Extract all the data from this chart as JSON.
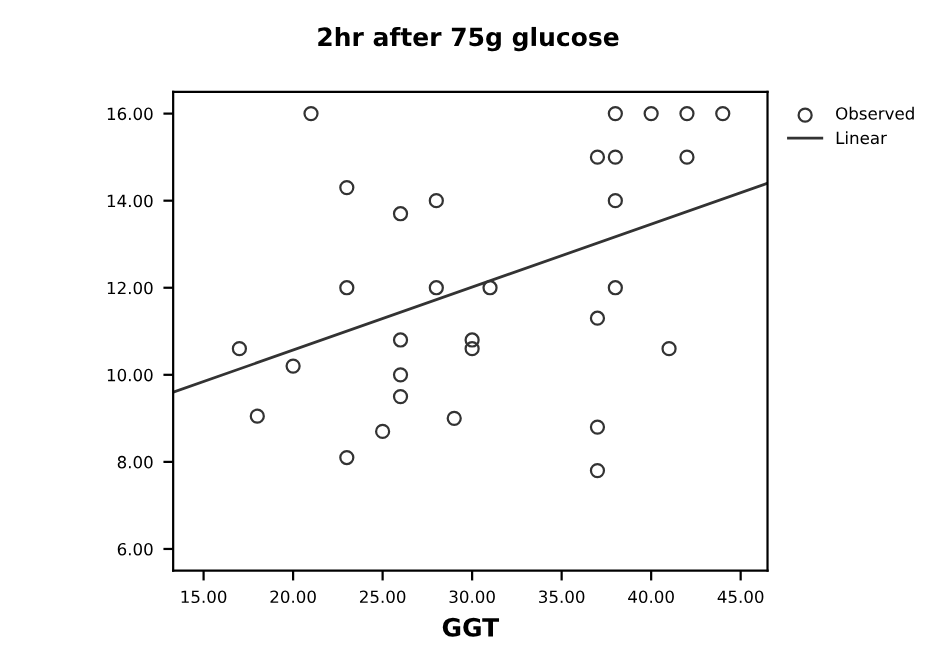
{
  "chart_data": {
    "type": "scatter",
    "title": "2hr after 75g glucose",
    "xlabel": "GGT",
    "xlim": [
      13.3,
      46.5
    ],
    "ylim": [
      5.5,
      16.5
    ],
    "xticks": [
      {
        "value": 15,
        "label": "15.00"
      },
      {
        "value": 20,
        "label": "20.00"
      },
      {
        "value": 25,
        "label": "25.00"
      },
      {
        "value": 30,
        "label": "30.00"
      },
      {
        "value": 35,
        "label": "35.00"
      },
      {
        "value": 40,
        "label": "40.00"
      },
      {
        "value": 45,
        "label": "45.00"
      }
    ],
    "yticks": [
      {
        "value": 6,
        "label": "6.00"
      },
      {
        "value": 8,
        "label": "8.00"
      },
      {
        "value": 10,
        "label": "10.00"
      },
      {
        "value": 12,
        "label": "12.00"
      },
      {
        "value": 14,
        "label": "14.00"
      },
      {
        "value": 16,
        "label": "16.00"
      }
    ],
    "grid": false,
    "legend": "top right",
    "series": [
      {
        "name": "Observed",
        "marker": "circle",
        "color": "#333333",
        "x": [
          17,
          18,
          20,
          21,
          23,
          23,
          23,
          25,
          26,
          26,
          26,
          26,
          28,
          28,
          29,
          30,
          30,
          31,
          37,
          38,
          38,
          40,
          42,
          44,
          42,
          38,
          38,
          37,
          37,
          37,
          41
        ],
        "values": [
          10.6,
          9.05,
          10.2,
          16,
          14.3,
          12,
          8.1,
          8.7,
          10.8,
          10,
          9.5,
          13.7,
          14,
          12,
          9,
          10.8,
          10.6,
          12,
          15,
          15,
          16,
          16,
          16,
          16,
          15,
          14,
          12,
          11.3,
          8.8,
          7.8,
          10.6
        ]
      },
      {
        "name": "Linear",
        "type": "line",
        "marker": "none",
        "color": "#333333",
        "x": [
          13.3,
          46.5
        ],
        "values": [
          9.6,
          14.4
        ]
      }
    ]
  }
}
